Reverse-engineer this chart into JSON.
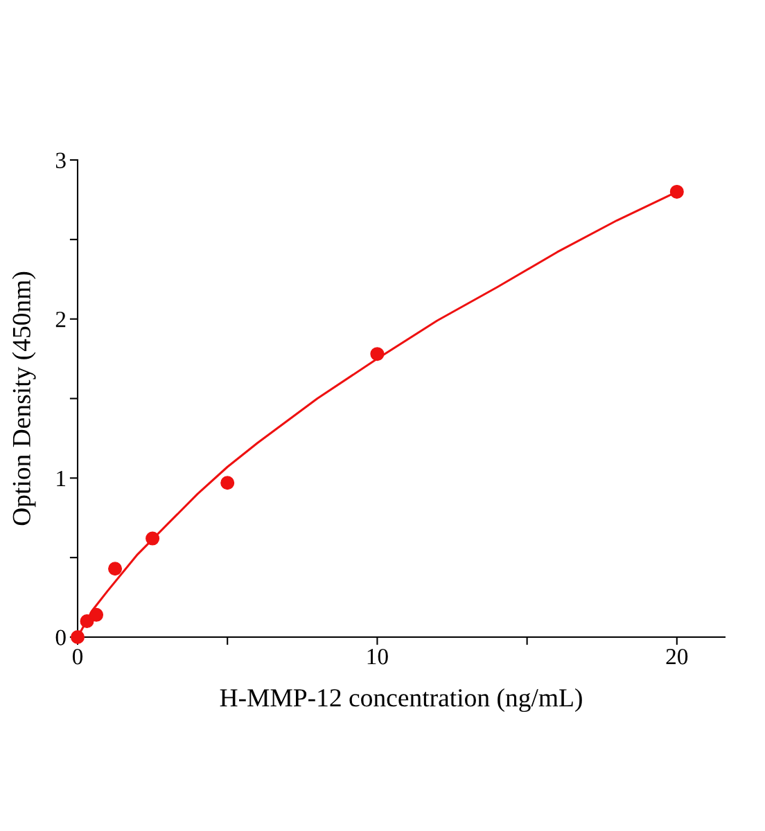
{
  "chart_data": {
    "type": "scatter",
    "xlabel": "H-MMP-12 concentration (ng/mL)",
    "ylabel": "Option Density (450nm)",
    "xlim": [
      0,
      21.6
    ],
    "ylim": [
      0,
      3
    ],
    "xticks": [
      0,
      {
        "value": 5,
        "label": null
      },
      10,
      {
        "value": 15,
        "label": null
      },
      20
    ],
    "yticks": [
      0,
      {
        "value": 0.5,
        "label": null
      },
      1,
      {
        "value": 1.5,
        "label": null
      },
      2,
      {
        "value": 2.5,
        "label": null
      },
      3
    ],
    "grid": false,
    "legend": false,
    "marker": "circle",
    "series": [
      {
        "color": "#ee1111",
        "x": [
          0,
          0.3125,
          0.625,
          1.25,
          2.5,
          5,
          10,
          20
        ],
        "values": [
          0,
          0.1,
          0.14,
          0.43,
          0.62,
          0.97,
          1.78,
          2.8
        ]
      },
      {
        "type": "line",
        "color": "#ee1111",
        "marker": "none",
        "line_style": "solid",
        "x": [
          0,
          0.5,
          1,
          2,
          3,
          4,
          5,
          6,
          8,
          10,
          12,
          14,
          16,
          18,
          20
        ],
        "values": [
          0,
          0.17,
          0.29,
          0.52,
          0.71,
          0.9,
          1.07,
          1.22,
          1.5,
          1.75,
          1.99,
          2.2,
          2.42,
          2.62,
          2.8
        ]
      }
    ]
  }
}
